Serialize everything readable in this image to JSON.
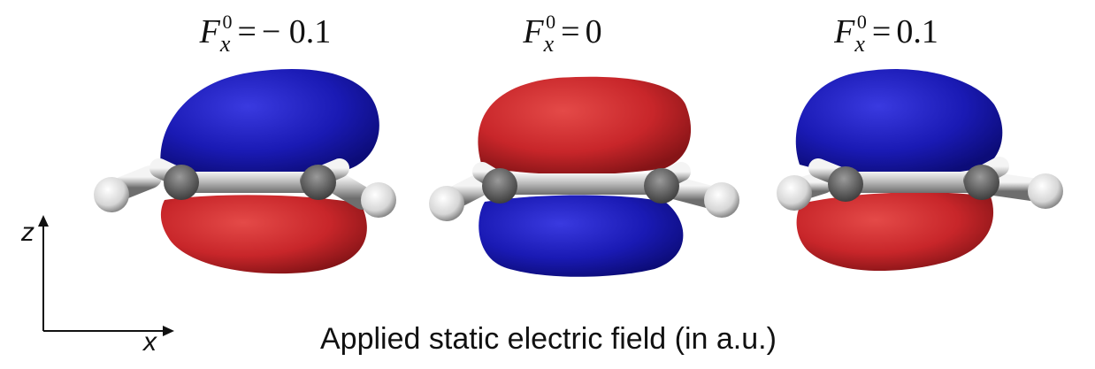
{
  "panels": [
    {
      "id": "neg",
      "F": "F",
      "sub": "x",
      "sup": "0",
      "eq": "=",
      "value": "− 0.1",
      "upper_lobe": "#1a1ab4",
      "lower_lobe": "#c8262a"
    },
    {
      "id": "zero",
      "F": "F",
      "sub": "x",
      "sup": "0",
      "eq": "=",
      "value": "0",
      "upper_lobe": "#c8262a",
      "lower_lobe": "#1a1ab4"
    },
    {
      "id": "pos",
      "F": "F",
      "sub": "x",
      "sup": "0",
      "eq": "=",
      "value": "0.1",
      "upper_lobe": "#1a1ab4",
      "lower_lobe": "#c8262a"
    }
  ],
  "axes": {
    "vertical": "z",
    "horizontal": "x"
  },
  "caption": "Applied static electric field (in a.u.)"
}
